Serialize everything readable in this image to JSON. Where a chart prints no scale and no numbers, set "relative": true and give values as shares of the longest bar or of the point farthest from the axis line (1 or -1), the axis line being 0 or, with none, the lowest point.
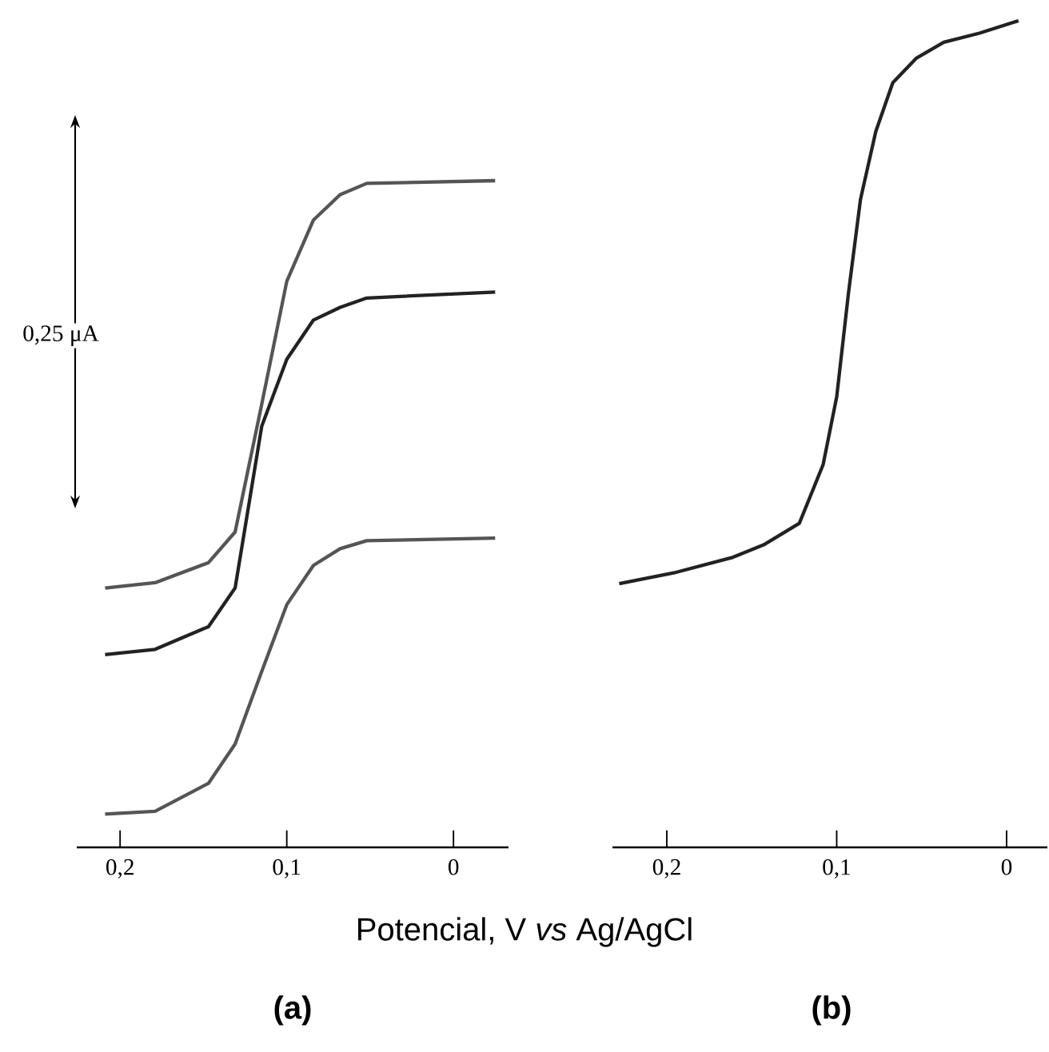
{
  "chart_data": [
    {
      "type": "line",
      "relative": true,
      "xlabel": "Potencial, V *vs* Ag/AgCl",
      "xlim": [
        0.226,
        -0.033
      ],
      "xticks": [
        {
          "value": 0.2,
          "label": "0,2"
        },
        {
          "value": 0.1,
          "label": "0,1"
        },
        {
          "value": 0,
          "label": "0"
        }
      ],
      "tick_labels": "x",
      "annotations": [
        "0,25 μA",
        "(a)"
      ],
      "series": [
        {
          "color": "#555555",
          "x": [
            0.209,
            0.179,
            0.147,
            0.131,
            0.115,
            0.1,
            0.084,
            0.068,
            0.052,
            -0.025
          ],
          "values": [
            0.389,
            0.397,
            0.427,
            0.473,
            0.665,
            0.849,
            0.941,
            0.979,
            0.996,
            1
          ]
        },
        {
          "color": "#222222",
          "x": [
            0.209,
            0.179,
            0.147,
            0.131,
            0.115,
            0.1,
            0.084,
            0.068,
            0.052,
            -0.025
          ],
          "values": [
            0.289,
            0.297,
            0.331,
            0.389,
            0.632,
            0.732,
            0.791,
            0.81,
            0.824,
            0.833
          ]
        },
        {
          "color": "#555555",
          "x": [
            0.209,
            0.179,
            0.147,
            0.131,
            0.115,
            0.1,
            0.084,
            0.068,
            0.052,
            -0.025
          ],
          "values": [
            0.05,
            0.054,
            0.096,
            0.155,
            0.264,
            0.364,
            0.423,
            0.448,
            0.46,
            0.464
          ]
        }
      ]
    },
    {
      "type": "line",
      "relative": true,
      "xlim": [
        0.232,
        -0.024
      ],
      "xticks": [
        {
          "value": 0.2,
          "label": "0,2"
        },
        {
          "value": 0.1,
          "label": "0,1"
        },
        {
          "value": 0,
          "label": "0"
        }
      ],
      "tick_labels": "x",
      "annotations": [
        "(b)"
      ],
      "series": [
        {
          "color": "#222222",
          "x": [
            0.228,
            0.196,
            0.161,
            0.143,
            0.122,
            0.108,
            0.1,
            0.093,
            0.086,
            0.077,
            0.067,
            0.053,
            0.037,
            0.016,
            -0.007
          ],
          "values": [
            0.319,
            0.332,
            0.351,
            0.366,
            0.392,
            0.463,
            0.545,
            0.672,
            0.784,
            0.866,
            0.925,
            0.955,
            0.974,
            0.985,
            1
          ]
        }
      ]
    }
  ]
}
